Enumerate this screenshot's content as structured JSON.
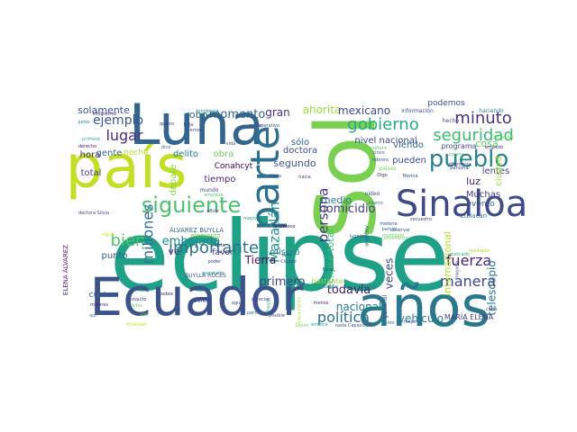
{
  "wordcloud": {
    "words": [
      {
        "text": "eclipse",
        "color": "#1fa187"
      },
      {
        "text": "Sol",
        "color": "#7ad151"
      },
      {
        "text": "Ecuador",
        "color": "#3b528b"
      },
      {
        "text": "años",
        "color": "#2a788e"
      },
      {
        "text": "país",
        "color": "#c2df23"
      },
      {
        "text": "Luna",
        "color": "#32648e"
      },
      {
        "text": "Sinaloa",
        "color": "#3e4a89"
      },
      {
        "text": "parte",
        "color": "#2d708e"
      },
      {
        "text": "pueblo",
        "color": "#26828e"
      },
      {
        "text": "siguiente",
        "color": "#4ac16d"
      },
      {
        "text": "gobierno",
        "color": "#25ab82"
      },
      {
        "text": "seguridad",
        "color": "#3dbc74"
      },
      {
        "text": "minuto",
        "color": "#46337f"
      },
      {
        "text": "lugar",
        "color": "#472d7b"
      },
      {
        "text": "ejemplo",
        "color": "#39568c"
      },
      {
        "text": "bien",
        "color": "#52c569"
      },
      {
        "text": "importante",
        "color": "#2c728e"
      },
      {
        "text": "fuerza",
        "color": "#482173"
      },
      {
        "text": "manera",
        "color": "#3e4989"
      },
      {
        "text": "política",
        "color": "#2c728e"
      },
      {
        "text": "millones",
        "color": "#2e6e8e"
      },
      {
        "text": "embajada",
        "color": "#23888e"
      },
      {
        "text": "Mazatlán",
        "color": "#20928c"
      },
      {
        "text": "persona",
        "color": "#453781"
      },
      {
        "text": "homicidio",
        "color": "#433e85"
      },
      {
        "text": "ahorita",
        "color": "#a0da39"
      },
      {
        "text": "mexicano",
        "color": "#414487"
      },
      {
        "text": "gran",
        "color": "#46327e"
      },
      {
        "text": "momento",
        "color": "#33638d"
      },
      {
        "text": "robo",
        "color": "#2d708e"
      },
      {
        "text": "solamente",
        "color": "#3b528b"
      },
      {
        "text": "gente",
        "color": "#31688e"
      },
      {
        "text": "hora",
        "color": "#46307e"
      },
      {
        "text": "total",
        "color": "#433e85"
      },
      {
        "text": "punto",
        "color": "#365d8d"
      },
      {
        "text": "primero",
        "color": "#433d84"
      },
      {
        "text": "todavía",
        "color": "#481b6d"
      },
      {
        "text": "nacional",
        "color": "#29788e"
      },
      {
        "text": "veces",
        "color": "#414487"
      },
      {
        "text": "telescopio",
        "color": "#2a768e"
      },
      {
        "text": "internacional",
        "color": "#b5de2b"
      },
      {
        "text": "vehículo",
        "color": "#297b8e"
      },
      {
        "text": "eclipse total",
        "color": "#3aba76"
      },
      {
        "text": "Tierra",
        "color": "#471063"
      },
      {
        "text": "mismo",
        "color": "#25848e"
      },
      {
        "text": "segundo",
        "color": "#3b528b"
      },
      {
        "text": "doctora",
        "color": "#3d4d8a"
      },
      {
        "text": "sólo",
        "color": "#355f8d"
      },
      {
        "text": "nivel nacional",
        "color": "#3f4889"
      },
      {
        "text": "medio",
        "color": "#2a768e"
      },
      {
        "text": "luz",
        "color": "#482475"
      },
      {
        "text": "Muchas",
        "color": "#443a83"
      },
      {
        "text": "evento",
        "color": "#38588c"
      },
      {
        "text": "lentes",
        "color": "#404688"
      },
      {
        "text": "cosa",
        "color": "#5ec962"
      },
      {
        "text": "viendo",
        "color": "#31678e"
      },
      {
        "text": "pueden",
        "color": "#3e4c8a"
      },
      {
        "text": "ciudad",
        "color": "#a5db36"
      },
      {
        "text": "podemos",
        "color": "#3b528b"
      },
      {
        "text": "Conahcyt",
        "color": "#440154"
      },
      {
        "text": "tiempo",
        "color": "#482878"
      },
      {
        "text": "delito",
        "color": "#297b8e"
      },
      {
        "text": "obra",
        "color": "#6ccd5a"
      },
      {
        "text": "debate",
        "color": "#8bd646"
      },
      {
        "text": "noche",
        "color": "#addc30"
      },
      {
        "text": "favor",
        "color": "#46327e"
      },
      {
        "text": "cuatro",
        "color": "#31688e"
      },
      {
        "text": "bastante",
        "color": "#9fda3a"
      },
      {
        "text": "vé",
        "color": "#472f7d"
      },
      {
        "text": "ELENA ÁLVAREZ",
        "color": "#482677"
      },
      {
        "text": "BUYLLA ROCES",
        "color": "#3c4f8a"
      },
      {
        "text": "ÁLVAREZ BUYLLA",
        "color": "#31688e"
      },
      {
        "text": "MARÍA ELENA",
        "color": "#433e85"
      },
      {
        "text": "elemento",
        "color": "#7fd34e"
      },
      {
        "text": "peso",
        "color": "#297a8e"
      },
      {
        "text": "general",
        "color": "#3a548c"
      },
      {
        "text": "programa",
        "color": "#3f4889"
      },
      {
        "text": "Culiacán",
        "color": "#2e6f8e"
      },
      {
        "text": "información",
        "color": "#3b518b"
      },
      {
        "text": "haciendo",
        "color": "#25858e"
      },
      {
        "text": "kilómetros",
        "color": "#482979"
      },
      {
        "text": "tendencia",
        "color": "#1f998a"
      },
      {
        "text": "junto",
        "color": "#2e6f8e"
      },
      {
        "text": "primera",
        "color": "#2fb47c"
      },
      {
        "text": "derecho",
        "color": "#481769"
      },
      {
        "text": "quiero",
        "color": "#46307e"
      },
      {
        "text": "baja",
        "color": "#3a538b"
      },
      {
        "text": "operativo",
        "color": "#3d4e8a"
      },
      {
        "text": "cinco",
        "color": "#38588c"
      },
      {
        "text": "febrero",
        "color": "#38598c"
      },
      {
        "text": "Marina",
        "color": "#3c4f8a"
      },
      {
        "text": "cultura",
        "color": "#52c569"
      },
      {
        "text": "países",
        "color": "#86d549"
      },
      {
        "text": "video",
        "color": "#3d4e8a"
      },
      {
        "text": "mundo",
        "color": "#404688"
      },
      {
        "text": "mayor",
        "color": "#1e9c89"
      },
      {
        "text": "mejor",
        "color": "#3b528b"
      },
      {
        "text": "hecho",
        "color": "#424086"
      },
      {
        "text": "dice",
        "color": "#2c718e"
      },
      {
        "text": "doctora Silvia",
        "color": "#3e4989"
      },
      {
        "text": "mujeres",
        "color": "#482576"
      },
      {
        "text": "ojo",
        "color": "#31688e"
      },
      {
        "text": "poquito",
        "color": "#414487"
      },
      {
        "text": "violencia",
        "color": "#3c4f8a"
      },
      {
        "text": "agua",
        "color": "#3d4d8a"
      },
      {
        "text": "menos",
        "color": "#482878"
      },
      {
        "text": "nada Capacidad",
        "color": "#3b528b"
      },
      {
        "text": "creo",
        "color": "#2b748e"
      },
      {
        "text": "municipio",
        "color": "#65cb5e"
      },
      {
        "text": "secuestro",
        "color": "#3e4a89"
      },
      {
        "text": "alrededor",
        "color": "#3b518b"
      },
      {
        "text": "observar",
        "color": "#3a538b"
      },
      {
        "text": "resultado",
        "color": "#addc30"
      },
      {
        "text": "fenómeno",
        "color": "#46075a"
      },
      {
        "text": "falta",
        "color": "#3e4a89"
      },
      {
        "text": "enseñanza",
        "color": "#6ccd5a"
      },
      {
        "text": "sigue",
        "color": "#d8e219"
      },
      {
        "text": "empieza",
        "color": "#5cc863"
      },
      {
        "text": "ocho",
        "color": "#5ec962"
      },
      {
        "text": "Silvia Flores",
        "color": "#a8db34"
      },
      {
        "text": "frente",
        "color": "#1f9e89"
      },
      {
        "text": "poder",
        "color": "#404588"
      },
      {
        "text": "vemos",
        "color": "#3c4f8a"
      },
      {
        "text": "tomar",
        "color": "#3e4a89"
      },
      {
        "text": "vida",
        "color": "#3b528b"
      },
      {
        "text": "diferencia",
        "color": "#3f4788"
      },
      {
        "text": "Situación",
        "color": "#6ccd5a"
      },
      {
        "text": "marco",
        "color": "#2f6c8e"
      },
      {
        "text": "cada",
        "color": "#3f4889"
      },
      {
        "text": "empezó",
        "color": "#482173"
      },
      {
        "text": "nota",
        "color": "#3e4a89"
      },
      {
        "text": "apreciar",
        "color": "#414487"
      },
      {
        "text": "posible",
        "color": "#3b528b"
      },
      {
        "text": "sobre",
        "color": "#481a6c"
      },
      {
        "text": "secretario",
        "color": "#1f968b"
      },
      {
        "text": "alto",
        "color": "#5ec962"
      },
      {
        "text": "meteria",
        "color": "#3d4e8a"
      },
      {
        "text": "parcial",
        "color": "#2e6e8e"
      },
      {
        "text": "totalidad",
        "color": "#c8e020"
      },
      {
        "text": "Ciudad",
        "color": "#3f4889"
      },
      {
        "text": "corona",
        "color": "#44bf70"
      },
      {
        "text": "lugares",
        "color": "#3b518b"
      },
      {
        "text": "mayoría",
        "color": "#38588c"
      },
      {
        "text": "Leyes",
        "color": "#73d056"
      },
      {
        "text": "personal",
        "color": "#404688"
      },
      {
        "text": "Dígo",
        "color": "#481f70"
      },
      {
        "text": "justicia",
        "color": "#25838e"
      },
      {
        "text": "mercado",
        "color": "#2fb47c"
      },
      {
        "text": "partido",
        "color": "#31678e"
      },
      {
        "text": "oficio",
        "color": "#472d7b"
      },
      {
        "text": "fiscal",
        "color": "#3c4f8a"
      },
      {
        "text": "sombra",
        "color": "#20a486"
      },
      {
        "text": "lleva",
        "color": "#3b528b"
      },
      {
        "text": "hacia",
        "color": "#3e4c8a"
      }
    ]
  }
}
